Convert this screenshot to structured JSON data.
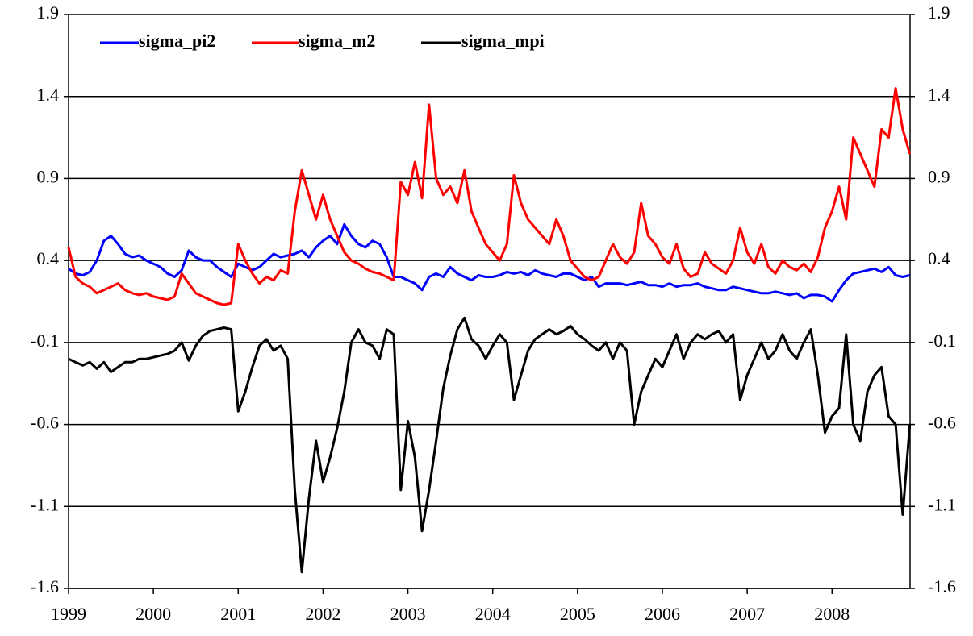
{
  "chart_data": {
    "type": "line",
    "x": [
      1999,
      1999.083,
      1999.167,
      1999.25,
      1999.333,
      1999.417,
      1999.5,
      1999.583,
      1999.667,
      1999.75,
      1999.833,
      1999.917,
      2000,
      2000.083,
      2000.167,
      2000.25,
      2000.333,
      2000.417,
      2000.5,
      2000.583,
      2000.667,
      2000.75,
      2000.833,
      2000.917,
      2001,
      2001.083,
      2001.167,
      2001.25,
      2001.333,
      2001.417,
      2001.5,
      2001.583,
      2001.667,
      2001.75,
      2001.833,
      2001.917,
      2002,
      2002.083,
      2002.167,
      2002.25,
      2002.333,
      2002.417,
      2002.5,
      2002.583,
      2002.667,
      2002.75,
      2002.833,
      2002.917,
      2003,
      2003.083,
      2003.167,
      2003.25,
      2003.333,
      2003.417,
      2003.5,
      2003.583,
      2003.667,
      2003.75,
      2003.833,
      2003.917,
      2004,
      2004.083,
      2004.167,
      2004.25,
      2004.333,
      2004.417,
      2004.5,
      2004.583,
      2004.667,
      2004.75,
      2004.833,
      2004.917,
      2005,
      2005.083,
      2005.167,
      2005.25,
      2005.333,
      2005.417,
      2005.5,
      2005.583,
      2005.667,
      2005.75,
      2005.833,
      2005.917,
      2006,
      2006.083,
      2006.167,
      2006.25,
      2006.333,
      2006.417,
      2006.5,
      2006.583,
      2006.667,
      2006.75,
      2006.833,
      2006.917,
      2007,
      2007.083,
      2007.167,
      2007.25,
      2007.333,
      2007.417,
      2007.5,
      2007.583,
      2007.667,
      2007.75,
      2007.833,
      2007.917,
      2008,
      2008.083,
      2008.167,
      2008.25,
      2008.333,
      2008.417,
      2008.5,
      2008.583,
      2008.667,
      2008.75,
      2008.833,
      2008.917
    ],
    "series": [
      {
        "name": "sigma_pi2",
        "color": "#0000ff",
        "values": [
          0.35,
          0.32,
          0.31,
          0.33,
          0.4,
          0.52,
          0.55,
          0.5,
          0.44,
          0.42,
          0.43,
          0.4,
          0.38,
          0.36,
          0.32,
          0.3,
          0.34,
          0.46,
          0.42,
          0.4,
          0.4,
          0.36,
          0.33,
          0.3,
          0.38,
          0.36,
          0.34,
          0.36,
          0.4,
          0.44,
          0.42,
          0.43,
          0.44,
          0.46,
          0.42,
          0.48,
          0.52,
          0.55,
          0.5,
          0.62,
          0.55,
          0.5,
          0.48,
          0.52,
          0.5,
          0.42,
          0.3,
          0.3,
          0.28,
          0.26,
          0.22,
          0.3,
          0.32,
          0.3,
          0.36,
          0.32,
          0.3,
          0.28,
          0.31,
          0.3,
          0.3,
          0.31,
          0.33,
          0.32,
          0.33,
          0.31,
          0.34,
          0.32,
          0.31,
          0.3,
          0.32,
          0.32,
          0.3,
          0.28,
          0.3,
          0.24,
          0.26,
          0.26,
          0.26,
          0.25,
          0.26,
          0.27,
          0.25,
          0.25,
          0.24,
          0.26,
          0.24,
          0.25,
          0.25,
          0.26,
          0.24,
          0.23,
          0.22,
          0.22,
          0.24,
          0.23,
          0.22,
          0.21,
          0.2,
          0.2,
          0.21,
          0.2,
          0.19,
          0.2,
          0.17,
          0.19,
          0.19,
          0.18,
          0.15,
          0.22,
          0.28,
          0.32,
          0.33,
          0.34,
          0.35,
          0.33,
          0.36,
          0.31,
          0.3,
          0.31
        ]
      },
      {
        "name": "sigma_m2",
        "color": "#ff0000",
        "values": [
          0.48,
          0.3,
          0.26,
          0.24,
          0.2,
          0.22,
          0.24,
          0.26,
          0.22,
          0.2,
          0.19,
          0.2,
          0.18,
          0.17,
          0.16,
          0.18,
          0.32,
          0.26,
          0.2,
          0.18,
          0.16,
          0.14,
          0.13,
          0.14,
          0.5,
          0.4,
          0.32,
          0.26,
          0.3,
          0.28,
          0.34,
          0.32,
          0.7,
          0.95,
          0.8,
          0.65,
          0.8,
          0.65,
          0.55,
          0.45,
          0.4,
          0.38,
          0.35,
          0.33,
          0.32,
          0.3,
          0.28,
          0.88,
          0.8,
          1.0,
          0.78,
          1.35,
          0.9,
          0.8,
          0.85,
          0.75,
          0.95,
          0.7,
          0.6,
          0.5,
          0.45,
          0.4,
          0.5,
          0.92,
          0.75,
          0.65,
          0.6,
          0.55,
          0.5,
          0.65,
          0.55,
          0.4,
          0.35,
          0.3,
          0.28,
          0.3,
          0.4,
          0.5,
          0.42,
          0.38,
          0.45,
          0.75,
          0.55,
          0.5,
          0.42,
          0.38,
          0.5,
          0.35,
          0.3,
          0.32,
          0.45,
          0.38,
          0.35,
          0.32,
          0.4,
          0.6,
          0.45,
          0.38,
          0.5,
          0.36,
          0.32,
          0.4,
          0.36,
          0.34,
          0.38,
          0.33,
          0.42,
          0.6,
          0.7,
          0.85,
          0.65,
          1.15,
          1.05,
          0.95,
          0.85,
          1.2,
          1.15,
          1.45,
          1.2,
          1.05
        ]
      },
      {
        "name": "sigma_mpi",
        "color": "#000000",
        "values": [
          -0.2,
          -0.22,
          -0.24,
          -0.22,
          -0.26,
          -0.22,
          -0.28,
          -0.25,
          -0.22,
          -0.22,
          -0.2,
          -0.2,
          -0.19,
          -0.18,
          -0.17,
          -0.15,
          -0.1,
          -0.21,
          -0.12,
          -0.06,
          -0.03,
          -0.02,
          -0.01,
          -0.02,
          -0.52,
          -0.4,
          -0.25,
          -0.12,
          -0.08,
          -0.15,
          -0.12,
          -0.2,
          -1.0,
          -1.5,
          -1.05,
          -0.7,
          -0.95,
          -0.8,
          -0.62,
          -0.4,
          -0.1,
          -0.02,
          -0.1,
          -0.12,
          -0.2,
          -0.02,
          -0.05,
          -1.0,
          -0.58,
          -0.8,
          -1.25,
          -1.0,
          -0.7,
          -0.38,
          -0.18,
          -0.02,
          0.05,
          -0.08,
          -0.12,
          -0.2,
          -0.12,
          -0.05,
          -0.1,
          -0.45,
          -0.3,
          -0.15,
          -0.08,
          -0.05,
          -0.02,
          -0.05,
          -0.03,
          0.0,
          -0.05,
          -0.08,
          -0.12,
          -0.15,
          -0.1,
          -0.2,
          -0.1,
          -0.15,
          -0.6,
          -0.4,
          -0.3,
          -0.2,
          -0.25,
          -0.15,
          -0.05,
          -0.2,
          -0.1,
          -0.05,
          -0.08,
          -0.05,
          -0.03,
          -0.1,
          -0.05,
          -0.45,
          -0.3,
          -0.2,
          -0.1,
          -0.2,
          -0.15,
          -0.05,
          -0.15,
          -0.2,
          -0.1,
          -0.02,
          -0.3,
          -0.65,
          -0.55,
          -0.5,
          -0.05,
          -0.6,
          -0.7,
          -0.4,
          -0.3,
          -0.25,
          -0.55,
          -0.6,
          -1.15,
          -0.6
        ]
      }
    ],
    "xlim": [
      1999,
      2008.92
    ],
    "xticks": [
      1999,
      2000,
      2001,
      2002,
      2003,
      2004,
      2005,
      2006,
      2007,
      2008
    ],
    "ylim": [
      -1.6,
      1.9
    ],
    "yticks": [
      -1.6,
      -1.1,
      -0.6,
      -0.1,
      0.4,
      0.9,
      1.4,
      1.9
    ],
    "y2lim": [
      -1.6,
      1.9
    ],
    "y2ticks": [
      -1.6,
      -1.1,
      -0.6,
      -0.1,
      0.4,
      0.9,
      1.4,
      1.9
    ],
    "grid": true,
    "legend": "top-left"
  }
}
